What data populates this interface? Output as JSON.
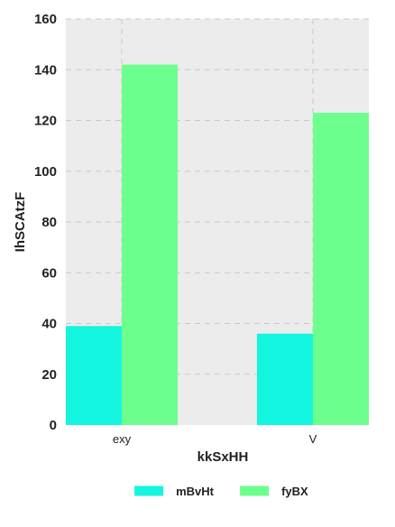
{
  "chart_data": {
    "type": "bar",
    "title": "",
    "xlabel": "kkSxHH",
    "ylabel": "IhSCAtzF",
    "categories": [
      "exy",
      "V"
    ],
    "series": [
      {
        "name": "mBvHt",
        "values": [
          39,
          36
        ],
        "color": "#14f5e0"
      },
      {
        "name": "fyBX",
        "values": [
          142,
          123
        ],
        "color": "#6cff8d"
      }
    ],
    "ylim": [
      0,
      160
    ],
    "yticks": [
      0,
      20,
      40,
      60,
      80,
      100,
      120,
      140,
      160
    ],
    "grid": true,
    "legend": "bottom-center",
    "background": "#ececec"
  }
}
